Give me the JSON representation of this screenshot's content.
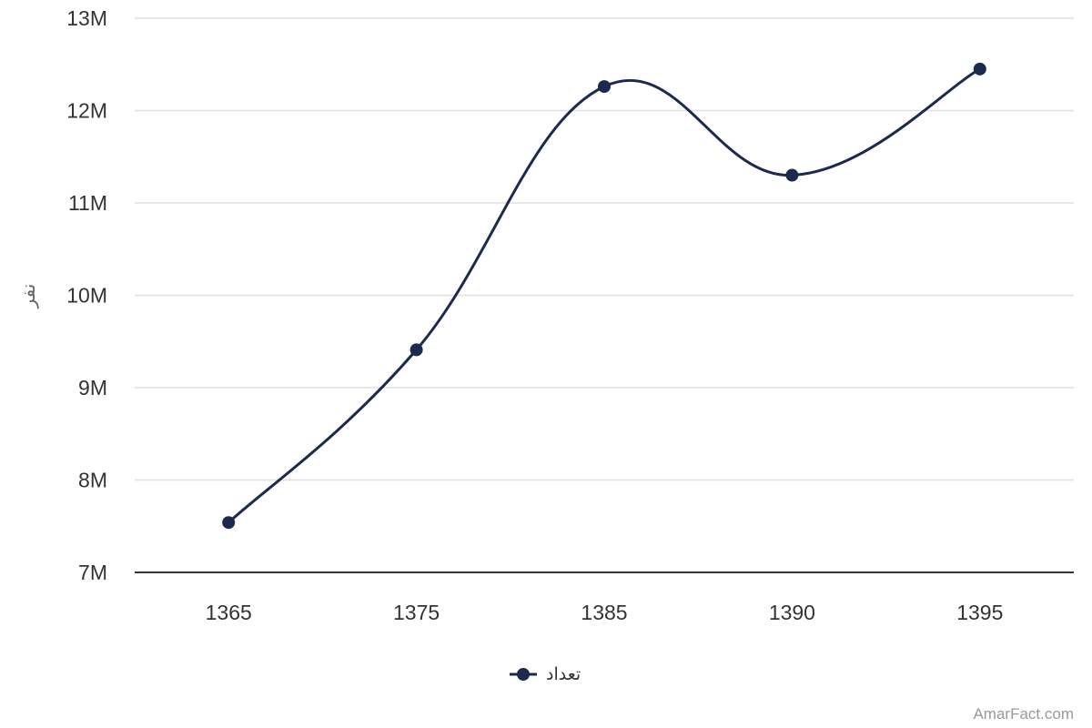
{
  "chart_data": {
    "type": "line",
    "smooth": true,
    "categories": [
      "1365",
      "1375",
      "1385",
      "1390",
      "1395"
    ],
    "series": [
      {
        "name": "تعداد",
        "values": [
          7540000,
          9410000,
          12260000,
          11300000,
          12450000
        ],
        "color": "#1b2a4d"
      }
    ],
    "ylabel": "نفر",
    "ylim": [
      7000000,
      13000000
    ],
    "yticks": [
      7000000,
      8000000,
      9000000,
      10000000,
      11000000,
      12000000,
      13000000
    ],
    "ytick_labels": [
      "7M",
      "8M",
      "9M",
      "10M",
      "11M",
      "12M",
      "13M"
    ],
    "grid": true,
    "legend": "bottom-center"
  },
  "credit": "AmarFact.com",
  "colors": {
    "series": "#1b2a4d",
    "grid": "#e0e0e0",
    "axis": "#333333",
    "text": "#333333",
    "credit": "#999999"
  }
}
